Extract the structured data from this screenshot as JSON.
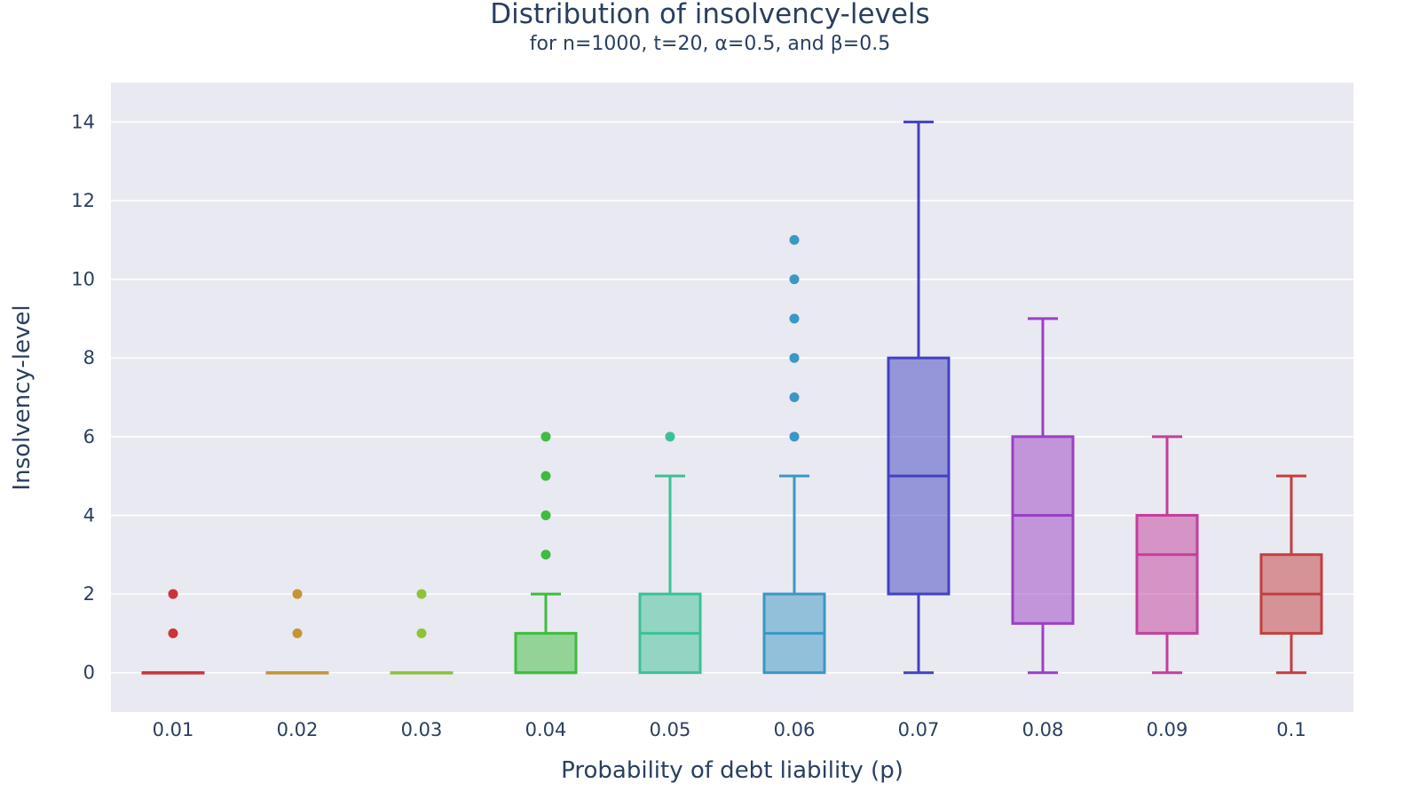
{
  "chart_data": {
    "type": "box",
    "title": "Distribution of insolvency-levels",
    "subtitle": "for n=1000, t=20, α=0.5, and β=0.5",
    "xlabel": "Probability of debt liability (p)",
    "ylabel": "Insolvency-level",
    "ylim": [
      -1,
      15
    ],
    "yticks": [
      0,
      2,
      4,
      6,
      8,
      10,
      12,
      14
    ],
    "grid": true,
    "legend": "none",
    "plot_background": "#e9e9f1",
    "categories": [
      "0.01",
      "0.02",
      "0.03",
      "0.04",
      "0.05",
      "0.06",
      "0.07",
      "0.08",
      "0.09",
      "0.1"
    ],
    "series": [
      {
        "color": "#c9353a",
        "min": 0,
        "q1": 0,
        "median": 0,
        "q3": 0,
        "max": 0,
        "outliers": [
          1,
          2
        ]
      },
      {
        "color": "#c49537",
        "min": 0,
        "q1": 0,
        "median": 0,
        "q3": 0,
        "max": 0,
        "outliers": [
          1,
          2
        ]
      },
      {
        "color": "#8fc23a",
        "min": 0,
        "q1": 0,
        "median": 0,
        "q3": 0,
        "max": 0,
        "outliers": [
          1,
          2
        ]
      },
      {
        "color": "#3dbd3d",
        "min": 0,
        "q1": 0,
        "median": 0,
        "q3": 1,
        "max": 2,
        "outliers": [
          3,
          4,
          5,
          6
        ]
      },
      {
        "color": "#3cc196",
        "min": 0,
        "q1": 0,
        "median": 1,
        "q3": 2,
        "max": 5,
        "outliers": [
          6
        ]
      },
      {
        "color": "#3b97c4",
        "min": 0,
        "q1": 0,
        "median": 1,
        "q3": 2,
        "max": 5,
        "outliers": [
          6,
          7,
          8,
          9,
          10,
          11
        ]
      },
      {
        "color": "#4242c2",
        "min": 0,
        "q1": 2,
        "median": 5,
        "q3": 8,
        "max": 14,
        "outliers": []
      },
      {
        "color": "#9b3fc4",
        "min": 0,
        "q1": 1.25,
        "median": 4,
        "q3": 6,
        "max": 9,
        "outliers": []
      },
      {
        "color": "#c43e9b",
        "min": 0,
        "q1": 1,
        "median": 3,
        "q3": 4,
        "max": 6,
        "outliers": []
      },
      {
        "color": "#c43e3e",
        "min": 0,
        "q1": 1,
        "median": 2,
        "q3": 3,
        "max": 5,
        "outliers": []
      }
    ]
  }
}
